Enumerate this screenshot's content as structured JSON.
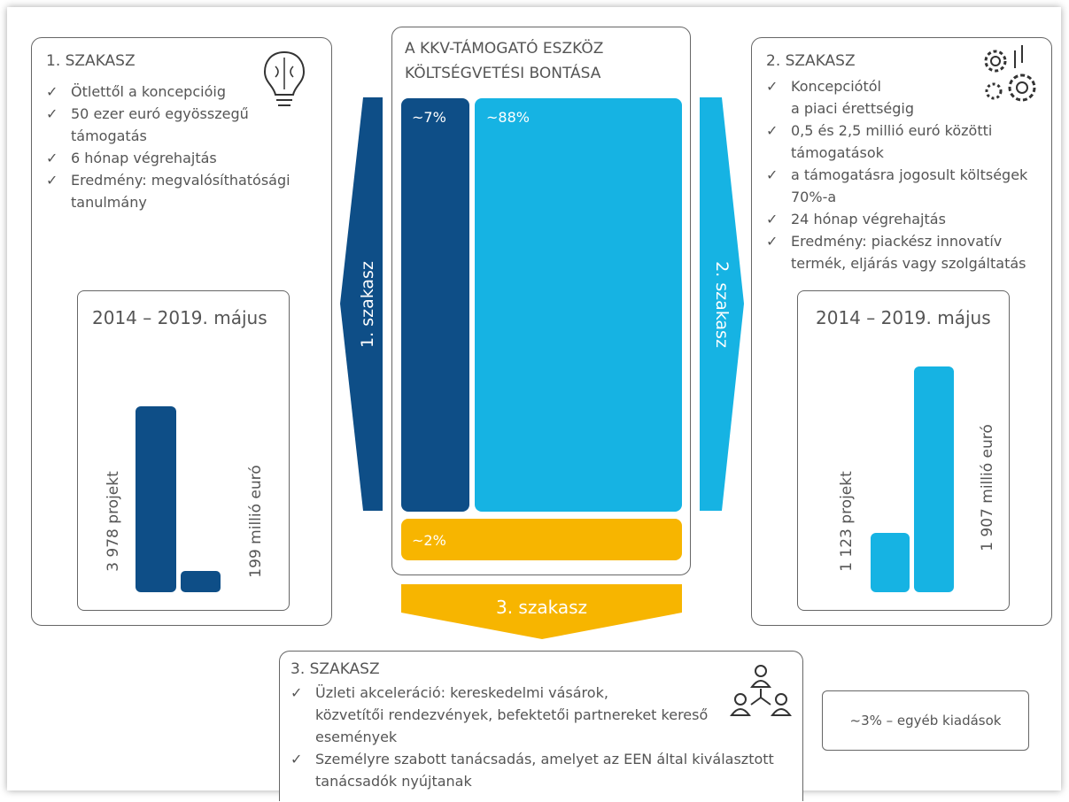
{
  "stage1": {
    "title": "1. SZAKASZ",
    "items": [
      [
        "Ötlettől a koncepcióig"
      ],
      [
        "50 ezer euró egyösszegű",
        "támogatás"
      ],
      [
        "6 hónap végrehajtás"
      ],
      [
        "Eredmény: megvalósíthatósági",
        "tanulmány"
      ]
    ],
    "period": "2014 – 2019. május",
    "labels": [
      "3 978 projekt",
      "199 millió euró"
    ]
  },
  "budget": {
    "title": [
      "A KKV-TÁMOGATÓ ESZKÖZ",
      "KÖLTSÉGVETÉSI BONTÁSA"
    ],
    "segments": [
      "~7%",
      "~88%",
      "~2%"
    ]
  },
  "arrows": [
    "1. szakasz",
    "2. szakasz",
    "3. szakasz"
  ],
  "stage2": {
    "title": "2. SZAKASZ",
    "items": [
      [
        "Koncepciótól",
        "a piaci érettségig"
      ],
      [
        "0,5 és 2,5 millió euró közötti",
        "támogatások"
      ],
      [
        "a támogatásra jogosult költségek",
        "70%-a"
      ],
      [
        "24 hónap végrehajtás"
      ],
      [
        "Eredmény: piackész innovatív",
        "termék, eljárás vagy szolgáltatás"
      ]
    ],
    "period": "2014 – 2019. május",
    "labels": [
      "1 123 projekt",
      "1 907 millió euró"
    ]
  },
  "stage3": {
    "title": "3. SZAKASZ",
    "items": [
      [
        "Üzleti akceleráció: kereskedelmi vásárok,",
        "közvetítői rendezvények, befektetői partnereket kereső",
        "események"
      ],
      [
        "Személyre szabott tanácsadás, amelyet az EEN által kiválasztott",
        "tanácsadók nyújtanak"
      ]
    ]
  },
  "other": "~3% – egyéb kiadások"
}
